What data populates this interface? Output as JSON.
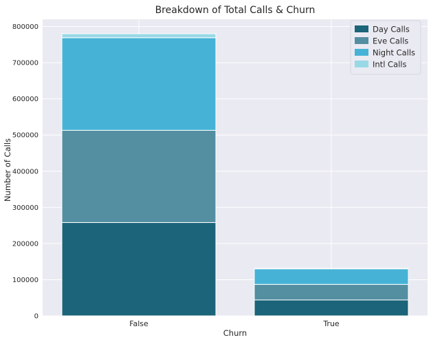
{
  "chart_data": {
    "type": "bar",
    "stacked": true,
    "title": "Breakdown of Total Calls & Churn",
    "xlabel": "Churn",
    "ylabel": "Number of Calls",
    "categories": [
      "False",
      "True"
    ],
    "ylim": [
      0,
      820000
    ],
    "yticks": [
      0,
      100000,
      200000,
      300000,
      400000,
      500000,
      600000,
      700000,
      800000
    ],
    "grid": true,
    "legend_position": "top-right",
    "series": [
      {
        "name": "Day Calls",
        "color": "#1b6479",
        "values": [
          258000,
          44000
        ]
      },
      {
        "name": "Eve Calls",
        "color": "#548ea1",
        "values": [
          255000,
          43000
        ]
      },
      {
        "name": "Night Calls",
        "color": "#46b3d6",
        "values": [
          256000,
          43000
        ]
      },
      {
        "name": "Intl Calls",
        "color": "#99d9e6",
        "values": [
          11000,
          1000
        ]
      }
    ]
  }
}
